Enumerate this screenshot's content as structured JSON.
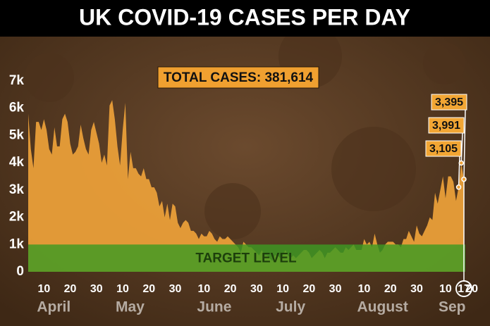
{
  "chart_data": {
    "type": "area",
    "title": "UK COVID-19 CASES PER DAY",
    "annotation": "TOTAL CASES: 381,614",
    "target": {
      "label": "TARGET LEVEL",
      "value": 1000
    },
    "ylim": [
      0,
      7000
    ],
    "yticks": [
      0,
      {
        "value": 1000,
        "label": "1k"
      },
      {
        "value": 2000,
        "label": "2k"
      },
      {
        "value": 3000,
        "label": "3k"
      },
      {
        "value": 4000,
        "label": "4k"
      },
      {
        "value": 5000,
        "label": "5k"
      },
      {
        "value": 6000,
        "label": "6k"
      },
      {
        "value": 7000,
        "label": "7k"
      }
    ],
    "xticks": [
      {
        "value": "Apr 10",
        "label": "10"
      },
      {
        "value": "Apr 20",
        "label": "20"
      },
      {
        "value": "Apr 30",
        "label": "30"
      },
      {
        "value": "May 10",
        "label": "10"
      },
      {
        "value": "May 20",
        "label": "20"
      },
      {
        "value": "May 30",
        "label": "30"
      },
      {
        "value": "Jun 10",
        "label": "10"
      },
      {
        "value": "Jun 20",
        "label": "20"
      },
      {
        "value": "Jun 30",
        "label": "30"
      },
      {
        "value": "Jul 10",
        "label": "10"
      },
      {
        "value": "Jul 20",
        "label": "20"
      },
      {
        "value": "Jul 30",
        "label": "30"
      },
      {
        "value": "Aug 10",
        "label": "10"
      },
      {
        "value": "Aug 20",
        "label": "20"
      },
      {
        "value": "Aug 30",
        "label": "30"
      },
      {
        "value": "Sep 10",
        "label": "10"
      },
      {
        "value": "Sep 17",
        "label": "17"
      },
      {
        "value": "Sep 20",
        "label": "20"
      }
    ],
    "month_labels": [
      "April",
      "May",
      "June",
      "July",
      "August",
      "Sep"
    ],
    "x": [
      "Apr 4",
      "Apr 5",
      "Apr 6",
      "Apr 7",
      "Apr 8",
      "Apr 9",
      "Apr 10",
      "Apr 11",
      "Apr 12",
      "Apr 13",
      "Apr 14",
      "Apr 15",
      "Apr 16",
      "Apr 17",
      "Apr 18",
      "Apr 19",
      "Apr 20",
      "Apr 21",
      "Apr 22",
      "Apr 23",
      "Apr 24",
      "Apr 25",
      "Apr 26",
      "Apr 27",
      "Apr 28",
      "Apr 29",
      "Apr 30",
      "May 1",
      "May 2",
      "May 3",
      "May 4",
      "May 5",
      "May 6",
      "May 7",
      "May 8",
      "May 9",
      "May 10",
      "May 11",
      "May 12",
      "May 13",
      "May 14",
      "May 15",
      "May 16",
      "May 17",
      "May 18",
      "May 19",
      "May 20",
      "May 21",
      "May 22",
      "May 23",
      "May 24",
      "May 25",
      "May 26",
      "May 27",
      "May 28",
      "May 29",
      "May 30",
      "May 31",
      "Jun 1",
      "Jun 2",
      "Jun 3",
      "Jun 4",
      "Jun 5",
      "Jun 6",
      "Jun 7",
      "Jun 8",
      "Jun 9",
      "Jun 10",
      "Jun 11",
      "Jun 12",
      "Jun 13",
      "Jun 14",
      "Jun 15",
      "Jun 16",
      "Jun 17",
      "Jun 18",
      "Jun 19",
      "Jun 20",
      "Jun 21",
      "Jun 22",
      "Jun 23",
      "Jun 24",
      "Jun 25",
      "Jun 26",
      "Jun 27",
      "Jun 28",
      "Jun 29",
      "Jun 30",
      "Jul 1",
      "Jul 2",
      "Jul 3",
      "Jul 4",
      "Jul 5",
      "Jul 6",
      "Jul 7",
      "Jul 8",
      "Jul 9",
      "Jul 10",
      "Jul 11",
      "Jul 12",
      "Jul 13",
      "Jul 14",
      "Jul 15",
      "Jul 16",
      "Jul 17",
      "Jul 18",
      "Jul 19",
      "Jul 20",
      "Jul 21",
      "Jul 22",
      "Jul 23",
      "Jul 24",
      "Jul 25",
      "Jul 26",
      "Jul 27",
      "Jul 28",
      "Jul 29",
      "Jul 30",
      "Jul 31",
      "Aug 1",
      "Aug 2",
      "Aug 3",
      "Aug 4",
      "Aug 5",
      "Aug 6",
      "Aug 7",
      "Aug 8",
      "Aug 9",
      "Aug 10",
      "Aug 11",
      "Aug 12",
      "Aug 13",
      "Aug 14",
      "Aug 15",
      "Aug 16",
      "Aug 17",
      "Aug 18",
      "Aug 19",
      "Aug 20",
      "Aug 21",
      "Aug 22",
      "Aug 23",
      "Aug 24",
      "Aug 25",
      "Aug 26",
      "Aug 27",
      "Aug 28",
      "Aug 29",
      "Aug 30",
      "Aug 31",
      "Sep 1",
      "Sep 2",
      "Sep 3",
      "Sep 4",
      "Sep 5",
      "Sep 6",
      "Sep 7",
      "Sep 8",
      "Sep 9",
      "Sep 10",
      "Sep 11",
      "Sep 12",
      "Sep 13",
      "Sep 14",
      "Sep 15",
      "Sep 16",
      "Sep 17"
    ],
    "series": [
      {
        "color": "#eea23a",
        "values": [
          5800,
          4500,
          3800,
          5500,
          5500,
          5200,
          5600,
          5200,
          4500,
          4300,
          5300,
          4600,
          4600,
          5600,
          5800,
          5500,
          4700,
          4300,
          4400,
          4600,
          5400,
          4900,
          4500,
          4300,
          5200,
          5500,
          5100,
          4700,
          4000,
          4300,
          3900,
          6100,
          6300,
          5600,
          4600,
          3900,
          5200,
          6200,
          3400,
          4400,
          3800,
          3800,
          3600,
          3500,
          3800,
          3400,
          3400,
          3100,
          3100,
          2900,
          2400,
          2600,
          2000,
          2500,
          1900,
          2500,
          2400,
          1800,
          1600,
          1800,
          1900,
          1800,
          1500,
          1500,
          1400,
          1200,
          1400,
          1300,
          1300,
          1500,
          1400,
          1200,
          1100,
          1300,
          1200,
          1200,
          1300,
          1200,
          1100,
          1000,
          900,
          700,
          1100,
          1000,
          900,
          900,
          800,
          700,
          600,
          800,
          600,
          600,
          500,
          400,
          600,
          600,
          500,
          600,
          800,
          600,
          500,
          600,
          500,
          600,
          700,
          800,
          800,
          700,
          500,
          600,
          700,
          800,
          700,
          500,
          700,
          700,
          800,
          900,
          800,
          700,
          700,
          900,
          800,
          900,
          1000,
          800,
          800,
          800,
          1200,
          1000,
          1100,
          900,
          1400,
          1000,
          700,
          800,
          1000,
          1100,
          1100,
          1100,
          1000,
          1000,
          900,
          1200,
          1200,
          1500,
          1300,
          1100,
          1700,
          1400,
          1300,
          1500,
          1700,
          2000,
          1900,
          2900,
          2500,
          3000,
          3500,
          2700,
          3500,
          3500,
          3300,
          2600,
          3105,
          3991,
          3395
        ],
        "value_labels": [
          null,
          null,
          null,
          null,
          null,
          null,
          null,
          null,
          null,
          null,
          null,
          null,
          null,
          null,
          null,
          null,
          null,
          null,
          null,
          null,
          null,
          null,
          null,
          null,
          null,
          null,
          null,
          null,
          null,
          null,
          null,
          null,
          null,
          null,
          null,
          null,
          null,
          null,
          null,
          null,
          null,
          null,
          null,
          null,
          null,
          null,
          null,
          null,
          null,
          null,
          null,
          null,
          null,
          null,
          null,
          null,
          null,
          null,
          null,
          null,
          null,
          null,
          null,
          null,
          null,
          null,
          null,
          null,
          null,
          null,
          null,
          null,
          null,
          null,
          null,
          null,
          null,
          null,
          null,
          null,
          null,
          null,
          null,
          null,
          null,
          null,
          null,
          null,
          null,
          null,
          null,
          null,
          null,
          null,
          null,
          null,
          null,
          null,
          null,
          null,
          null,
          null,
          null,
          null,
          null,
          null,
          null,
          null,
          null,
          null,
          null,
          null,
          null,
          null,
          null,
          null,
          null,
          null,
          null,
          null,
          null,
          null,
          null,
          null,
          null,
          null,
          null,
          null,
          null,
          null,
          null,
          null,
          null,
          null,
          null,
          null,
          null,
          null,
          null,
          null,
          null,
          null,
          null,
          null,
          null,
          null,
          null,
          null,
          null,
          null,
          null,
          null,
          null,
          null,
          null,
          null,
          null,
          null,
          null,
          null,
          null,
          null,
          null,
          null,
          "3,105",
          "3,991",
          "3,395"
        ]
      }
    ]
  }
}
